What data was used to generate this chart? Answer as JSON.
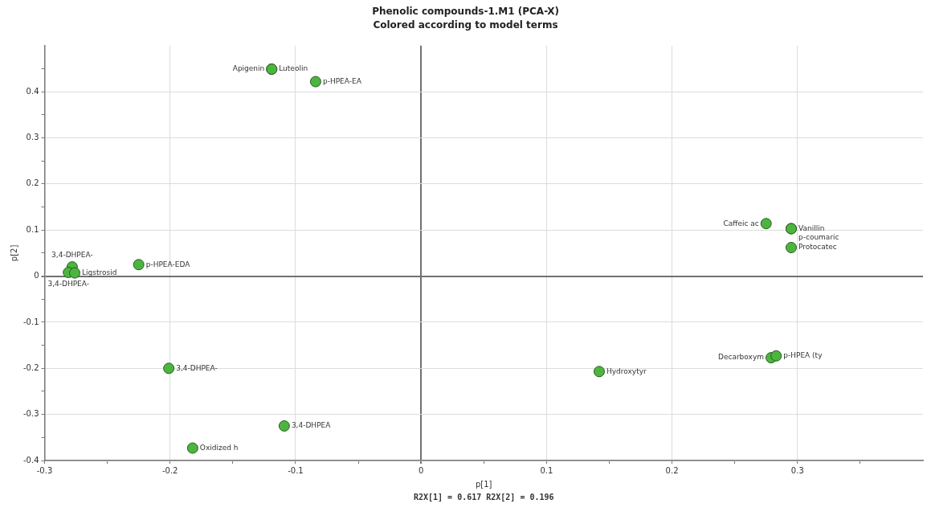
{
  "chart_data": {
    "type": "scatter",
    "title": "Phenolic compounds-1.M1 (PCA-X)",
    "subtitle": "Colored according to model terms",
    "xlabel": "p[1]",
    "ylabel": "p[2]",
    "series": [
      {
        "color": "#4cb53f",
        "x": [
          -0.119,
          -0.119,
          -0.084,
          -0.225,
          -0.278,
          -0.281,
          -0.276,
          -0.201,
          -0.109,
          -0.182,
          0.142,
          0.279,
          0.283,
          0.275,
          0.295,
          0.295,
          0.295
        ],
        "values": [
          0.449,
          0.449,
          0.422,
          0.025,
          0.02,
          0.008,
          0.007,
          -0.2,
          -0.325,
          -0.373,
          -0.207,
          -0.177,
          -0.173,
          0.114,
          0.103,
          0.103,
          0.062
        ]
      }
    ],
    "annotations": [
      {
        "text": "Apigenin",
        "x": -0.119,
        "y": 0.449
      },
      {
        "text": "Luteolin",
        "x": -0.119,
        "y": 0.449
      },
      {
        "text": "p-HPEA-EA",
        "x": -0.084,
        "y": 0.422
      },
      {
        "text": "p-HPEA-EDA",
        "x": -0.225,
        "y": 0.025
      },
      {
        "text": "3,4-DHPEA-",
        "x": -0.278,
        "y": 0.02
      },
      {
        "text": "3,4-DHPEA-",
        "x": -0.281,
        "y": 0.008
      },
      {
        "text": "Ligstrosid",
        "x": -0.276,
        "y": 0.007
      },
      {
        "text": "3,4-DHPEA-",
        "x": -0.201,
        "y": -0.2
      },
      {
        "text": "3,4-DHPEA",
        "x": -0.109,
        "y": -0.325
      },
      {
        "text": "Oxidized h",
        "x": -0.182,
        "y": -0.373
      },
      {
        "text": "Hydroxytyr",
        "x": 0.142,
        "y": -0.207
      },
      {
        "text": "Decarboxym",
        "x": 0.279,
        "y": -0.177
      },
      {
        "text": "p-HPEA (ty",
        "x": 0.283,
        "y": -0.173
      },
      {
        "text": "Caffeic ac",
        "x": 0.275,
        "y": 0.114
      },
      {
        "text": "Vanillin",
        "x": 0.295,
        "y": 0.103
      },
      {
        "text": "p-coumaric",
        "x": 0.295,
        "y": 0.103
      },
      {
        "text": "Protocatec",
        "x": 0.295,
        "y": 0.062
      },
      "R2X[1] = 0.617 R2X[2] = 0.196"
    ],
    "xlim": [
      -0.3,
      0.4
    ],
    "ylim": [
      -0.4,
      0.5
    ],
    "xticks": [
      -0.3,
      {
        "value": -0.25,
        "label": null
      },
      -0.2,
      {
        "value": -0.15,
        "label": null
      },
      -0.1,
      {
        "value": -0.05,
        "label": null
      },
      0,
      {
        "value": 0.05,
        "label": null
      },
      0.1,
      {
        "value": 0.15,
        "label": null
      },
      0.2,
      {
        "value": 0.25,
        "label": null
      },
      0.3,
      {
        "value": 0.35,
        "label": null
      }
    ],
    "yticks": [
      -0.4,
      {
        "value": -0.35,
        "label": null
      },
      -0.3,
      {
        "value": -0.25,
        "label": null
      },
      -0.2,
      {
        "value": -0.15,
        "label": null
      },
      -0.1,
      {
        "value": -0.05,
        "label": null
      },
      0,
      {
        "value": 0.05,
        "label": null
      },
      0.1,
      {
        "value": 0.15,
        "label": null
      },
      0.2,
      {
        "value": 0.25,
        "label": null
      },
      0.3,
      {
        "value": 0.35,
        "label": null
      },
      0.4,
      {
        "value": 0.45,
        "label": null
      }
    ],
    "grid": true,
    "legend": false,
    "marker": "circle"
  }
}
